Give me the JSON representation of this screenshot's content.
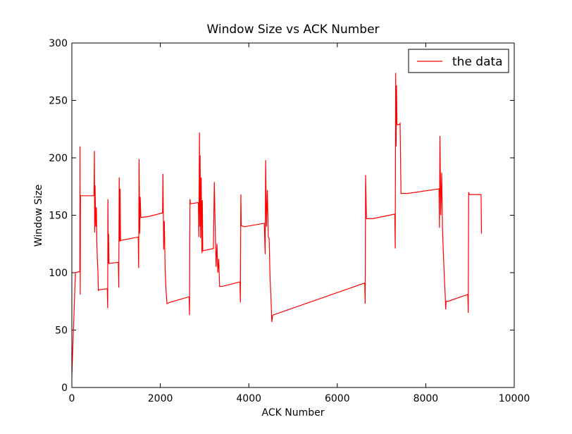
{
  "chart_data": {
    "type": "line",
    "title": "Window Size vs ACK Number",
    "xlabel": "ACK Number",
    "ylabel": "Window Size",
    "xlim": [
      0,
      10000
    ],
    "xticks": [
      0,
      2000,
      4000,
      6000,
      8000,
      10000
    ],
    "ylim": [
      0,
      300
    ],
    "yticks": [
      0,
      50,
      100,
      150,
      200,
      250,
      300
    ],
    "grid": false,
    "legend": "upper right",
    "x": [
      0,
      80,
      180,
      185,
      190,
      195,
      500,
      510,
      515,
      525,
      540,
      555,
      565,
      575,
      590,
      600,
      610,
      800,
      810,
      815,
      825,
      830,
      840,
      1050,
      1060,
      1070,
      1085,
      1090,
      1100,
      1500,
      1510,
      1520,
      1535,
      1545,
      1560,
      1750,
      2050,
      2060,
      2075,
      2090,
      2110,
      2130,
      2150,
      2200,
      2650,
      2660,
      2670,
      2680,
      2860,
      2870,
      2885,
      2895,
      2900,
      2910,
      2925,
      2940,
      2950,
      2960,
      3200,
      3220,
      3240,
      3260,
      3280,
      3300,
      3320,
      3340,
      3400,
      3800,
      3810,
      3820,
      3830,
      3900,
      4350,
      4370,
      4380,
      4400,
      4420,
      4440,
      4460,
      4480,
      4500,
      4520,
      4540,
      6620,
      6630,
      6640,
      6660,
      6800,
      7300,
      7310,
      7320,
      7330,
      7340,
      7350,
      7400,
      7420,
      7440,
      7600,
      8300,
      8310,
      8320,
      8340,
      8360,
      8380,
      8400,
      8420,
      8440,
      8450,
      8460,
      8500,
      8950,
      8960,
      8970,
      8985,
      9250,
      9260
    ],
    "series": [
      {
        "name": "the data",
        "color": "#ff0000",
        "values": [
          10,
          100,
          101,
          210,
          81,
          167,
          167,
          206,
          135,
          176,
          140,
          157,
          126,
          113,
          100,
          84,
          85,
          86,
          69,
          164,
          108,
          134,
          108,
          109,
          87,
          183,
          127,
          173,
          128,
          131,
          104,
          199,
          134,
          166,
          148,
          149,
          152,
          186,
          120,
          145,
          100,
          84,
          73,
          74,
          79,
          63,
          164,
          160,
          161,
          131,
          222,
          140,
          202,
          130,
          183,
          117,
          163,
          119,
          121,
          179,
          141,
          105,
          125,
          100,
          112,
          88,
          88,
          92,
          74,
          168,
          141,
          140,
          143,
          116,
          198,
          140,
          172,
          131,
          130,
          96,
          79,
          57,
          63,
          91,
          73,
          185,
          147,
          147,
          151,
          121,
          274,
          210,
          263,
          229,
          229,
          230,
          169,
          169,
          173,
          139,
          219,
          150,
          187,
          136,
          115,
          96,
          80,
          68,
          75,
          75,
          81,
          65,
          170,
          168,
          168,
          134
        ]
      }
    ]
  }
}
